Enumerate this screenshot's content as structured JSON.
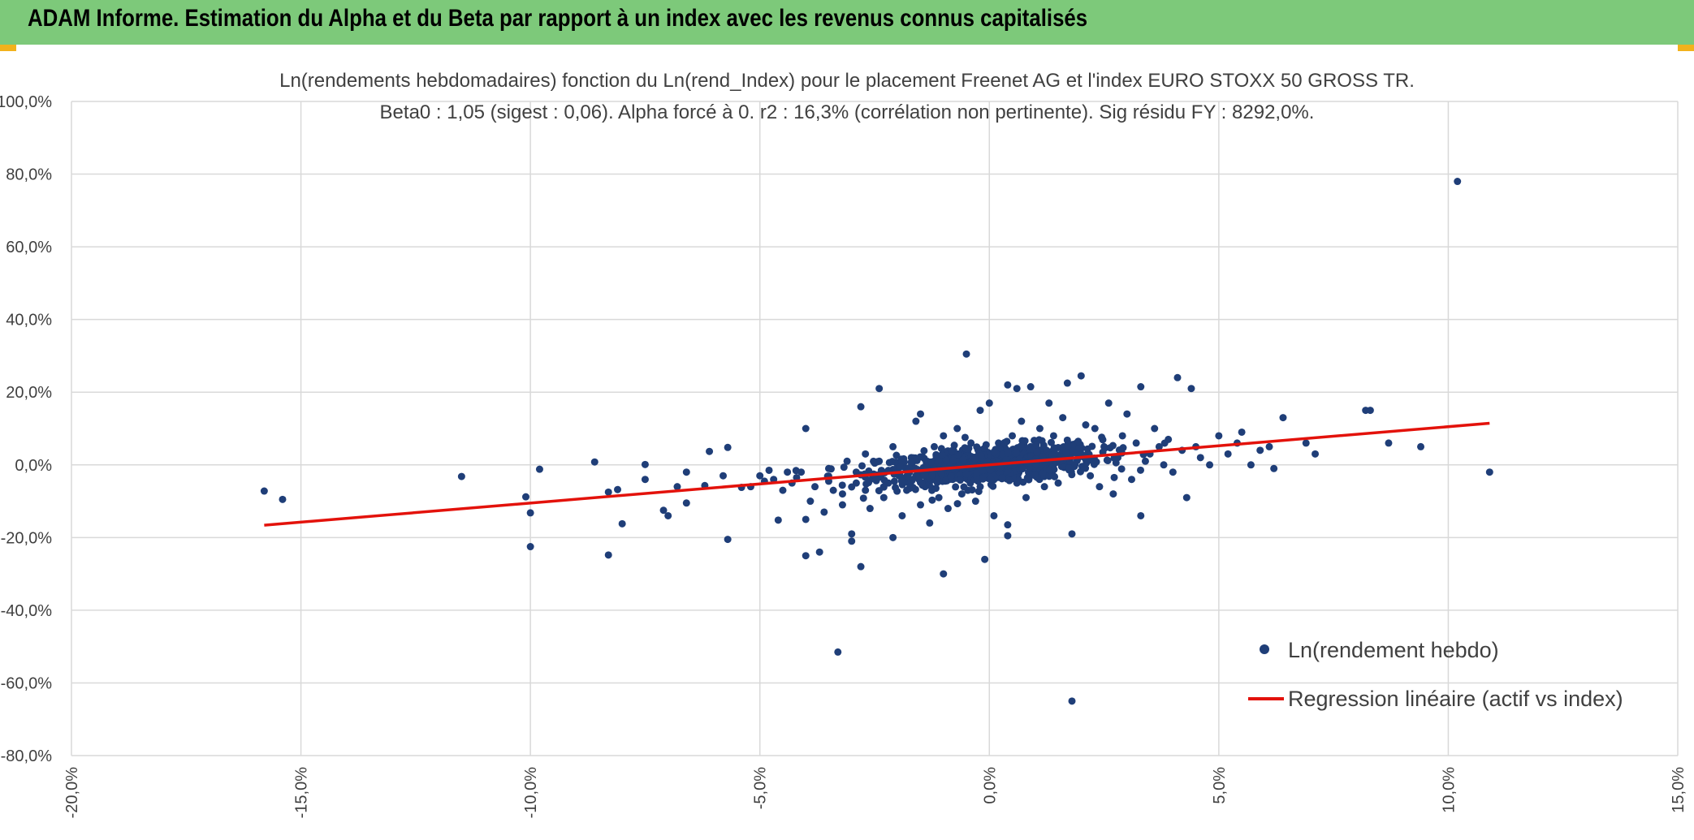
{
  "header": {
    "title": "ADAM Informe. Estimation du Alpha et du Beta par rapport à un index avec les revenus connus capitalisés"
  },
  "colors": {
    "header_bg": "#7dc97a",
    "accent_corner": "#f2b21c",
    "points": "#1f3e78",
    "regression": "#e3120b",
    "grid": "#d9d9d9"
  },
  "chart_data": {
    "type": "scatter",
    "title": "Ln(rendements hebdomadaires) fonction du Ln(rend_Index) pour le placement Freenet AG et l'index EURO STOXX 50 GROSS TR.",
    "subtitle": "Beta0 : 1,05 (sigest : 0,06). Alpha forcé à 0. r2 : 16,3% (corrélation non pertinente). Sig résidu FY : 8292,0%.",
    "xlim": [
      -0.2,
      0.15
    ],
    "ylim": [
      -0.8,
      1.0
    ],
    "x_ticks": [
      "-20,0%",
      "-15,0%",
      "-10,0%",
      "-5,0%",
      "0,0%",
      "5,0%",
      "10,0%",
      "15,0%"
    ],
    "y_ticks": [
      "100,0%",
      "80,0%",
      "60,0%",
      "40,0%",
      "20,0%",
      "0,0%",
      "-20,0%",
      "-40,0%",
      "-60,0%",
      "-80,0%"
    ],
    "grid": true,
    "legend_position": "bottom-right",
    "legend": [
      "Ln(rendement hebdo)",
      "Regression linéaire (actif vs index)"
    ],
    "series": [
      {
        "name": "Ln(rendement hebdo)",
        "points": [
          [
            -0.158,
            -0.072
          ],
          [
            -0.154,
            -0.095
          ],
          [
            -0.115,
            -0.032
          ],
          [
            -0.101,
            -0.088
          ],
          [
            -0.1,
            -0.132
          ],
          [
            -0.1,
            -0.225
          ],
          [
            -0.098,
            -0.012
          ],
          [
            -0.086,
            0.008
          ],
          [
            -0.083,
            -0.075
          ],
          [
            -0.081,
            -0.068
          ],
          [
            -0.08,
            -0.162
          ],
          [
            -0.083,
            -0.248
          ],
          [
            -0.075,
            0.001
          ],
          [
            -0.075,
            -0.04
          ],
          [
            -0.071,
            -0.125
          ],
          [
            -0.07,
            -0.14
          ],
          [
            -0.068,
            -0.06
          ],
          [
            -0.066,
            -0.105
          ],
          [
            -0.066,
            -0.02
          ],
          [
            -0.062,
            -0.057
          ],
          [
            -0.061,
            0.037
          ],
          [
            -0.058,
            -0.03
          ],
          [
            -0.057,
            0.048
          ],
          [
            -0.057,
            -0.205
          ],
          [
            -0.054,
            -0.062
          ],
          [
            -0.052,
            -0.06
          ],
          [
            -0.05,
            -0.03
          ],
          [
            -0.049,
            -0.045
          ],
          [
            -0.048,
            -0.015
          ],
          [
            -0.047,
            -0.04
          ],
          [
            -0.046,
            -0.152
          ],
          [
            -0.045,
            -0.07
          ],
          [
            -0.044,
            -0.02
          ],
          [
            -0.043,
            -0.05
          ],
          [
            -0.042,
            -0.035
          ],
          [
            -0.041,
            -0.02
          ],
          [
            -0.04,
            -0.15
          ],
          [
            -0.04,
            -0.25
          ],
          [
            -0.039,
            -0.1
          ],
          [
            -0.04,
            0.1
          ],
          [
            -0.038,
            -0.06
          ],
          [
            -0.037,
            -0.24
          ],
          [
            -0.036,
            -0.13
          ],
          [
            -0.035,
            -0.045
          ],
          [
            -0.035,
            -0.01
          ],
          [
            -0.034,
            -0.07
          ],
          [
            -0.033,
            -0.515
          ],
          [
            -0.032,
            -0.08
          ],
          [
            -0.032,
            -0.11
          ],
          [
            -0.031,
            0.01
          ],
          [
            -0.03,
            -0.21
          ],
          [
            -0.03,
            -0.19
          ],
          [
            -0.029,
            -0.05
          ],
          [
            -0.029,
            -0.02
          ],
          [
            -0.028,
            0.16
          ],
          [
            -0.028,
            -0.28
          ],
          [
            -0.027,
            -0.07
          ],
          [
            -0.027,
            0.03
          ],
          [
            -0.026,
            -0.12
          ],
          [
            -0.025,
            -0.03
          ],
          [
            -0.024,
            0.01
          ],
          [
            -0.024,
            0.21
          ],
          [
            -0.023,
            -0.09
          ],
          [
            -0.022,
            -0.05
          ],
          [
            -0.021,
            -0.2
          ],
          [
            -0.021,
            0.05
          ],
          [
            -0.02,
            -0.02
          ],
          [
            -0.019,
            0.0
          ],
          [
            -0.019,
            -0.14
          ],
          [
            -0.018,
            -0.07
          ],
          [
            -0.017,
            0.02
          ],
          [
            -0.016,
            0.12
          ],
          [
            -0.016,
            -0.03
          ],
          [
            -0.015,
            -0.11
          ],
          [
            -0.015,
            0.14
          ],
          [
            -0.014,
            -0.06
          ],
          [
            -0.013,
            -0.16
          ],
          [
            -0.012,
            0.05
          ],
          [
            -0.012,
            -0.015
          ],
          [
            -0.011,
            -0.09
          ],
          [
            -0.01,
            0.08
          ],
          [
            -0.01,
            -0.3
          ],
          [
            -0.009,
            -0.12
          ],
          [
            -0.008,
            0.03
          ],
          [
            -0.008,
            -0.04
          ],
          [
            -0.007,
            0.1
          ],
          [
            -0.006,
            -0.08
          ],
          [
            -0.005,
            0.0
          ],
          [
            -0.005,
            0.305
          ],
          [
            -0.004,
            0.06
          ],
          [
            -0.003,
            -0.1
          ],
          [
            -0.002,
            0.15
          ],
          [
            -0.002,
            -0.06
          ],
          [
            -0.001,
            -0.26
          ],
          [
            0.0,
            0.17
          ],
          [
            0.0,
            0.02
          ],
          [
            0.001,
            -0.14
          ],
          [
            0.002,
            0.06
          ],
          [
            0.003,
            -0.03
          ],
          [
            0.004,
            -0.165
          ],
          [
            0.004,
            -0.195
          ],
          [
            0.004,
            0.22
          ],
          [
            0.005,
            0.08
          ],
          [
            0.006,
            -0.05
          ],
          [
            0.006,
            0.21
          ],
          [
            0.007,
            0.12
          ],
          [
            0.008,
            -0.09
          ],
          [
            0.009,
            0.05
          ],
          [
            0.009,
            0.215
          ],
          [
            0.01,
            -0.03
          ],
          [
            0.011,
            0.1
          ],
          [
            0.012,
            -0.06
          ],
          [
            0.013,
            0.17
          ],
          [
            0.014,
            0.08
          ],
          [
            0.015,
            -0.05
          ],
          [
            0.016,
            0.13
          ],
          [
            0.017,
            0.02
          ],
          [
            0.017,
            0.225
          ],
          [
            0.018,
            -0.19
          ],
          [
            0.018,
            -0.65
          ],
          [
            0.019,
            0.06
          ],
          [
            0.02,
            0.245
          ],
          [
            0.021,
            0.11
          ],
          [
            0.022,
            -0.03
          ],
          [
            0.023,
            0.1
          ],
          [
            0.024,
            -0.06
          ],
          [
            0.025,
            0.05
          ],
          [
            0.026,
            0.17
          ],
          [
            0.027,
            -0.08
          ],
          [
            0.028,
            0.02
          ],
          [
            0.029,
            0.08
          ],
          [
            0.03,
            0.14
          ],
          [
            0.031,
            -0.04
          ],
          [
            0.032,
            0.06
          ],
          [
            0.033,
            0.215
          ],
          [
            0.033,
            -0.14
          ],
          [
            0.034,
            0.01
          ],
          [
            0.035,
            0.03
          ],
          [
            0.036,
            0.1
          ],
          [
            0.037,
            0.05
          ],
          [
            0.038,
            0.0
          ],
          [
            0.039,
            0.07
          ],
          [
            0.04,
            -0.02
          ],
          [
            0.041,
            0.24
          ],
          [
            0.042,
            0.04
          ],
          [
            0.043,
            -0.09
          ],
          [
            0.044,
            0.21
          ],
          [
            0.045,
            0.05
          ],
          [
            0.046,
            0.02
          ],
          [
            0.048,
            0.0
          ],
          [
            0.05,
            0.08
          ],
          [
            0.052,
            0.03
          ],
          [
            0.054,
            0.06
          ],
          [
            0.055,
            0.09
          ],
          [
            0.057,
            0.0
          ],
          [
            0.059,
            0.04
          ],
          [
            0.061,
            0.05
          ],
          [
            0.062,
            -0.01
          ],
          [
            0.064,
            0.13
          ],
          [
            0.069,
            0.06
          ],
          [
            0.071,
            0.03
          ],
          [
            0.082,
            0.15
          ],
          [
            0.083,
            0.15
          ],
          [
            0.087,
            0.06
          ],
          [
            0.094,
            0.05
          ],
          [
            0.102,
            0.78
          ],
          [
            0.109,
            -0.02
          ]
        ],
        "dense_cluster": {
          "center": [
            0.0,
            0.0
          ],
          "x_spread": 0.022,
          "y_spread": 0.045,
          "count": 900
        }
      },
      {
        "name": "Regression linéaire (actif vs index)",
        "line": [
          [
            -0.158,
            -0.166
          ],
          [
            0.109,
            0.1145
          ]
        ]
      }
    ]
  }
}
